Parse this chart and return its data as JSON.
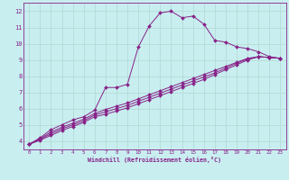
{
  "xlabel": "Windchill (Refroidissement éolien,°C)",
  "background_color": "#c8eef0",
  "grid_color": "#b0d8d0",
  "line_color": "#882288",
  "xlim": [
    -0.5,
    23.5
  ],
  "ylim": [
    3.5,
    12.5
  ],
  "xticks": [
    0,
    1,
    2,
    3,
    4,
    5,
    6,
    7,
    8,
    9,
    10,
    11,
    12,
    13,
    14,
    15,
    16,
    17,
    18,
    19,
    20,
    21,
    22,
    23
  ],
  "yticks": [
    4,
    5,
    6,
    7,
    8,
    9,
    10,
    11,
    12
  ],
  "lines": [
    {
      "x": [
        0,
        1,
        2,
        3,
        4,
        5,
        6,
        7,
        8,
        9,
        10,
        11,
        12,
        13,
        14,
        15,
        16,
        17,
        18,
        19,
        20,
        21,
        22,
        23
      ],
      "y": [
        3.8,
        4.2,
        4.7,
        5.0,
        5.3,
        5.5,
        5.9,
        7.3,
        7.3,
        7.5,
        9.8,
        11.1,
        11.9,
        12.0,
        11.6,
        11.7,
        11.2,
        10.2,
        10.1,
        9.8,
        9.7,
        9.5,
        9.2,
        9.1
      ]
    },
    {
      "x": [
        0,
        1,
        2,
        3,
        4,
        5,
        6,
        7,
        8,
        9,
        10,
        11,
        12,
        13,
        14,
        15,
        16,
        17,
        18,
        19,
        20,
        21,
        22,
        23
      ],
      "y": [
        3.8,
        4.15,
        4.55,
        4.85,
        5.1,
        5.35,
        5.7,
        5.95,
        6.15,
        6.35,
        6.6,
        6.85,
        7.1,
        7.35,
        7.6,
        7.85,
        8.1,
        8.35,
        8.6,
        8.85,
        9.1,
        9.2,
        9.15,
        9.1
      ]
    },
    {
      "x": [
        0,
        1,
        2,
        3,
        4,
        5,
        6,
        7,
        8,
        9,
        10,
        11,
        12,
        13,
        14,
        15,
        16,
        17,
        18,
        19,
        20,
        21,
        22,
        23
      ],
      "y": [
        3.8,
        4.1,
        4.45,
        4.75,
        5.0,
        5.25,
        5.6,
        5.8,
        6.0,
        6.2,
        6.45,
        6.7,
        6.95,
        7.2,
        7.45,
        7.7,
        7.95,
        8.2,
        8.5,
        8.8,
        9.05,
        9.2,
        9.15,
        9.1
      ]
    },
    {
      "x": [
        0,
        1,
        2,
        3,
        4,
        5,
        6,
        7,
        8,
        9,
        10,
        11,
        12,
        13,
        14,
        15,
        16,
        17,
        18,
        19,
        20,
        21,
        22,
        23
      ],
      "y": [
        3.8,
        4.05,
        4.35,
        4.65,
        4.9,
        5.15,
        5.5,
        5.65,
        5.85,
        6.05,
        6.3,
        6.55,
        6.8,
        7.05,
        7.3,
        7.55,
        7.8,
        8.1,
        8.4,
        8.7,
        9.0,
        9.2,
        9.15,
        9.1
      ]
    }
  ]
}
